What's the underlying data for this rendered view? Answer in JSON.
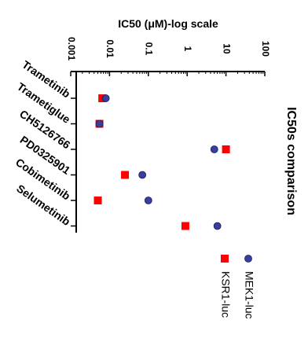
{
  "chart_data": {
    "type": "scatter",
    "title": "IC50 (μM)-log scale",
    "side_title": "IC50s comparison",
    "xscale": "log",
    "xlim": [
      0.001,
      100
    ],
    "tick_labels": [
      "0.001",
      "0.01",
      "0.1",
      "1",
      "10",
      "100"
    ],
    "tick_values": [
      0.001,
      0.01,
      0.1,
      1,
      10,
      100
    ],
    "categories": [
      "Trametinib",
      "Trametiglue",
      "CH5126766",
      "PD0325901",
      "Cobimetinib",
      "Selumetinib"
    ],
    "series": [
      {
        "name": "MEK1-luc",
        "marker": "circle",
        "color": "#3a3f9e",
        "values": [
          0.008,
          0.0055,
          5,
          0.07,
          0.1,
          6
        ]
      },
      {
        "name": "KSR1-luc",
        "marker": "square",
        "color": "#ff0000",
        "values": [
          0.0065,
          0.0055,
          10,
          0.025,
          0.005,
          0.9
        ]
      }
    ],
    "legend_position": "bottom",
    "grid": false
  }
}
